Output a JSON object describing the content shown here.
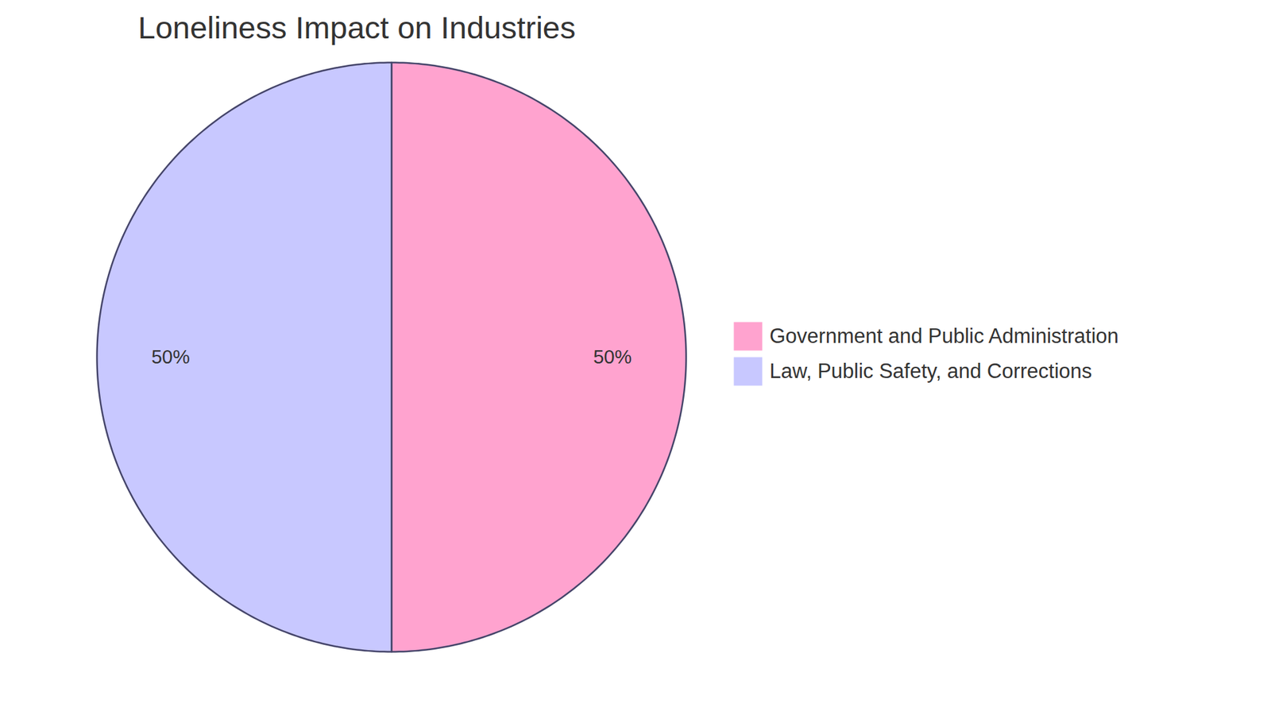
{
  "chart_data": {
    "type": "pie",
    "title": "Loneliness Impact on Industries",
    "categories": [
      "Government and Public Administration",
      "Law, Public Safety, and Corrections"
    ],
    "values": [
      50,
      50
    ],
    "value_labels": [
      "50%",
      "50%"
    ],
    "colors": [
      "#FFA3CF",
      "#C8C8FF"
    ],
    "data_labels": true,
    "legend": "right"
  }
}
